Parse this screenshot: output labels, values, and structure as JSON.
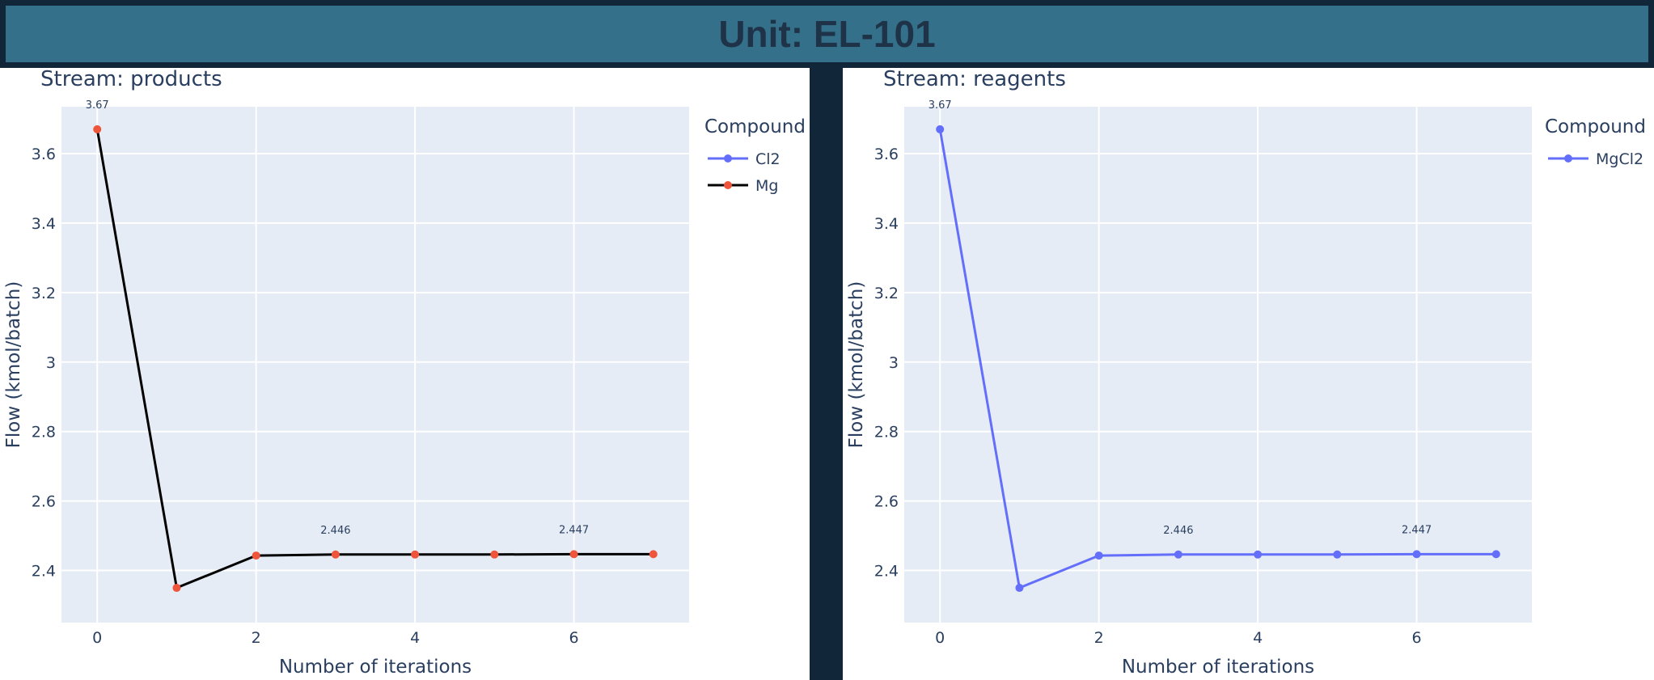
{
  "header": {
    "title": "Unit: EL-101"
  },
  "chart_data": [
    {
      "type": "line",
      "title": "Stream: products",
      "xlabel": "Number of iterations",
      "ylabel": "Flow (kmol/batch)",
      "xlim": [
        -0.45,
        7.45
      ],
      "ylim": [
        2.25,
        3.735
      ],
      "xticks": [
        0,
        2,
        4,
        6
      ],
      "yticks": [
        2.4,
        2.6,
        2.8,
        3,
        3.2,
        3.4,
        3.6
      ],
      "grid": true,
      "legend": {
        "title": "Compound",
        "position": "right"
      },
      "x": [
        0,
        1,
        2,
        3,
        4,
        5,
        6,
        7
      ],
      "series": [
        {
          "name": "Cl2",
          "color": "#636efa",
          "values": [
            3.67,
            2.35,
            2.443,
            2.446,
            2.446,
            2.446,
            2.447,
            2.447
          ],
          "visible_line": false
        },
        {
          "name": "Mg",
          "color": "#000000",
          "marker_color": "#ef553b",
          "values": [
            3.67,
            2.35,
            2.443,
            2.446,
            2.446,
            2.446,
            2.447,
            2.447
          ]
        }
      ],
      "annotations": [
        {
          "x": 0,
          "y": 3.67,
          "text": "3.67"
        },
        {
          "x": 3,
          "y": 2.446,
          "text": "2.446"
        },
        {
          "x": 6,
          "y": 2.447,
          "text": "2.447"
        }
      ]
    },
    {
      "type": "line",
      "title": "Stream: reagents",
      "xlabel": "Number of iterations",
      "ylabel": "Flow (kmol/batch)",
      "xlim": [
        -0.45,
        7.45
      ],
      "ylim": [
        2.25,
        3.735
      ],
      "xticks": [
        0,
        2,
        4,
        6
      ],
      "yticks": [
        2.4,
        2.6,
        2.8,
        3,
        3.2,
        3.4,
        3.6
      ],
      "grid": true,
      "legend": {
        "title": "Compound",
        "position": "right"
      },
      "x": [
        0,
        1,
        2,
        3,
        4,
        5,
        6,
        7
      ],
      "series": [
        {
          "name": "MgCl2",
          "color": "#636efa",
          "values": [
            3.67,
            2.35,
            2.443,
            2.446,
            2.446,
            2.446,
            2.447,
            2.447
          ]
        }
      ],
      "annotations": [
        {
          "x": 0,
          "y": 3.67,
          "text": "3.67"
        },
        {
          "x": 3,
          "y": 2.446,
          "text": "2.446"
        },
        {
          "x": 6,
          "y": 2.447,
          "text": "2.447"
        }
      ]
    }
  ]
}
